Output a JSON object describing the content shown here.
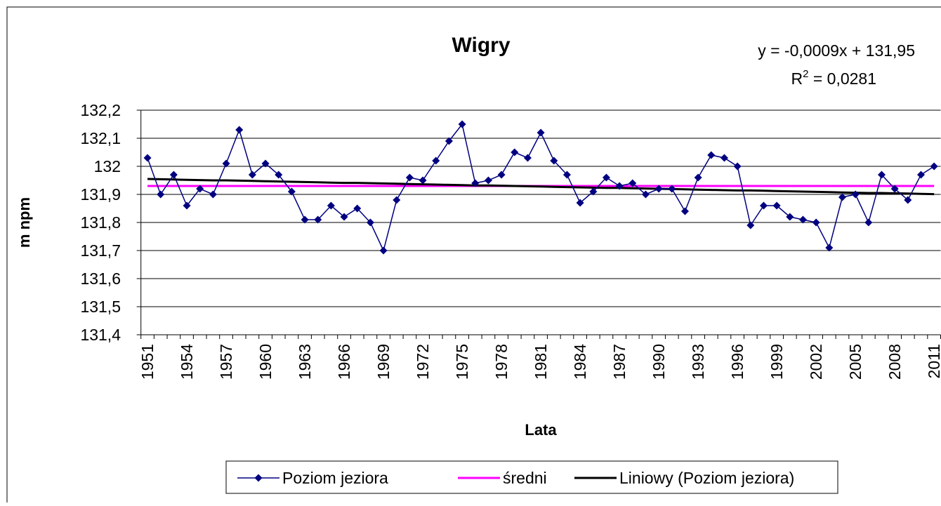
{
  "chart_data": {
    "type": "line",
    "title": "Wigry",
    "xlabel": "Lata",
    "ylabel": "m npm",
    "annotations": {
      "equation": "y = -0,0009x + 131,95",
      "r2_base": "R",
      "r2_exponent": "2",
      "r2_value": " = 0,0281"
    },
    "categories": [
      "1951",
      null,
      null,
      "1954",
      null,
      null,
      "1957",
      null,
      null,
      "1960",
      null,
      null,
      "1963",
      null,
      null,
      "1966",
      null,
      null,
      "1969",
      null,
      null,
      "1972",
      null,
      null,
      "1975",
      null,
      null,
      "1978",
      null,
      null,
      "1981",
      null,
      null,
      "1984",
      null,
      null,
      "1987",
      null,
      null,
      "1990",
      null,
      null,
      "1993",
      null,
      null,
      "1996",
      null,
      null,
      "1999",
      null,
      null,
      "2002",
      null,
      null,
      "2005",
      null,
      null,
      "2008",
      null,
      null,
      "2011"
    ],
    "ylim": [
      131.4,
      132.2
    ],
    "yticks": [
      {
        "value": 131.4,
        "label": "131,4"
      },
      {
        "value": 131.5,
        "label": "131,5"
      },
      {
        "value": 131.6,
        "label": "131,6"
      },
      {
        "value": 131.7,
        "label": "131,7"
      },
      {
        "value": 131.8,
        "label": "131,8"
      },
      {
        "value": 131.9,
        "label": "131,9"
      },
      132,
      {
        "value": 132.1,
        "label": "132,1"
      },
      {
        "value": 132.2,
        "label": "132,2"
      }
    ],
    "grid": true,
    "legend": "bottom",
    "series": [
      {
        "name": "Poziom jeziora",
        "color": "#000080",
        "marker": "diamond",
        "values": [
          132.03,
          131.9,
          131.97,
          131.86,
          131.92,
          131.9,
          132.01,
          132.13,
          131.97,
          132.01,
          131.97,
          131.91,
          131.81,
          131.81,
          131.86,
          131.82,
          131.85,
          131.8,
          131.7,
          131.88,
          131.96,
          131.95,
          132.02,
          132.09,
          132.15,
          131.94,
          131.95,
          131.97,
          132.05,
          132.03,
          132.12,
          132.02,
          131.97,
          131.87,
          131.91,
          131.96,
          131.93,
          131.94,
          131.9,
          131.92,
          131.92,
          131.84,
          131.96,
          132.04,
          132.03,
          132.0,
          131.79,
          131.86,
          131.86,
          131.82,
          131.81,
          131.8,
          131.71,
          131.89,
          131.9,
          131.8,
          131.97,
          131.92,
          131.88,
          131.97,
          132.0
        ]
      },
      {
        "name": "średni",
        "color": "#ff00ff",
        "values": [
          131.93,
          131.93,
          131.93,
          131.93,
          131.93,
          131.93,
          131.93,
          131.93,
          131.93,
          131.93,
          131.93,
          131.93,
          131.93,
          131.93,
          131.93,
          131.93,
          131.93,
          131.93,
          131.93,
          131.93,
          131.93,
          131.93,
          131.93,
          131.93,
          131.93,
          131.93,
          131.93,
          131.93,
          131.93,
          131.93,
          131.93,
          131.93,
          131.93,
          131.93,
          131.93,
          131.93,
          131.93,
          131.93,
          131.93,
          131.93,
          131.93,
          131.93,
          131.93,
          131.93,
          131.93,
          131.93,
          131.93,
          131.93,
          131.93,
          131.93,
          131.93,
          131.93,
          131.93,
          131.93,
          131.93,
          131.93,
          131.93,
          131.93,
          131.93,
          131.93,
          131.93
        ]
      },
      {
        "name": "Liniowy (Poziom jeziora)",
        "color": "#000000",
        "values": [
          131.955,
          131.954,
          131.953,
          131.952,
          131.951,
          131.95,
          131.95,
          131.949,
          131.948,
          131.947,
          131.946,
          131.945,
          131.944,
          131.943,
          131.942,
          131.941,
          131.941,
          131.94,
          131.939,
          131.938,
          131.937,
          131.936,
          131.935,
          131.934,
          131.933,
          131.932,
          131.932,
          131.931,
          131.93,
          131.929,
          131.928,
          131.927,
          131.926,
          131.925,
          131.924,
          131.923,
          131.923,
          131.922,
          131.921,
          131.92,
          131.919,
          131.918,
          131.917,
          131.916,
          131.915,
          131.914,
          131.914,
          131.913,
          131.912,
          131.911,
          131.91,
          131.909,
          131.908,
          131.907,
          131.906,
          131.905,
          131.905,
          131.904,
          131.903,
          131.902,
          131.901
        ]
      }
    ]
  }
}
